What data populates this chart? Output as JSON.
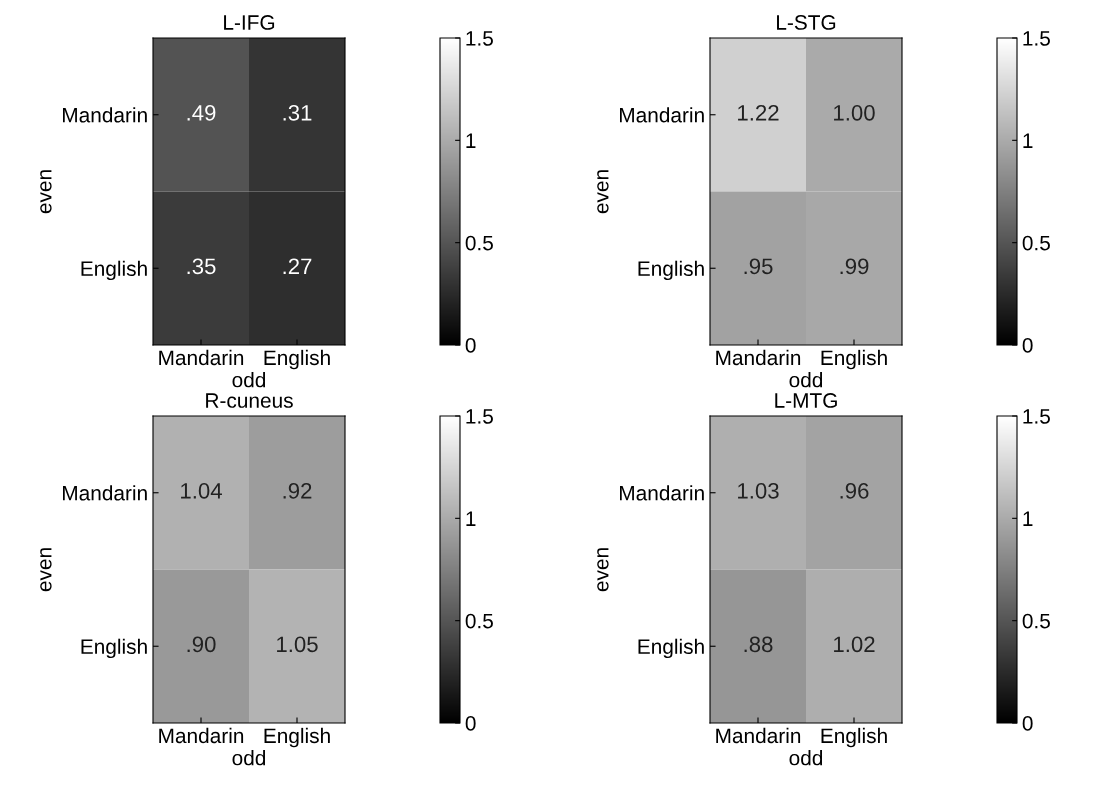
{
  "chart_data": [
    {
      "type": "heatmap",
      "title": "L-IFG",
      "xlabel": "odd",
      "ylabel": "even",
      "categories": [
        "Mandarin",
        "English"
      ],
      "y_categories": [
        "Mandarin",
        "English"
      ],
      "cells": [
        [
          0.49,
          0.31
        ],
        [
          0.35,
          0.27
        ]
      ],
      "cell_labels": [
        [
          ".49",
          ".31"
        ],
        [
          ".35",
          ".27"
        ]
      ],
      "clim": [
        0,
        1.5
      ],
      "cticks": [
        0,
        0.5,
        1,
        1.5
      ]
    },
    {
      "type": "heatmap",
      "title": "L-STG",
      "xlabel": "odd",
      "ylabel": "even",
      "categories": [
        "Mandarin",
        "English"
      ],
      "y_categories": [
        "Mandarin",
        "English"
      ],
      "cells": [
        [
          1.22,
          1.0
        ],
        [
          0.95,
          0.99
        ]
      ],
      "cell_labels": [
        [
          "1.22",
          "1.00"
        ],
        [
          ".95",
          ".99"
        ]
      ],
      "clim": [
        0,
        1.5
      ],
      "cticks": [
        0,
        0.5,
        1,
        1.5
      ]
    },
    {
      "type": "heatmap",
      "title": "R-cuneus",
      "xlabel": "odd",
      "ylabel": "even",
      "categories": [
        "Mandarin",
        "English"
      ],
      "y_categories": [
        "Mandarin",
        "English"
      ],
      "cells": [
        [
          1.04,
          0.92
        ],
        [
          0.9,
          1.05
        ]
      ],
      "cell_labels": [
        [
          "1.04",
          ".92"
        ],
        [
          ".90",
          "1.05"
        ]
      ],
      "clim": [
        0,
        1.5
      ],
      "cticks": [
        0,
        0.5,
        1,
        1.5
      ]
    },
    {
      "type": "heatmap",
      "title": "L-MTG",
      "xlabel": "odd",
      "ylabel": "even",
      "categories": [
        "Mandarin",
        "English"
      ],
      "y_categories": [
        "Mandarin",
        "English"
      ],
      "cells": [
        [
          1.03,
          0.96
        ],
        [
          0.88,
          1.02
        ]
      ],
      "cell_labels": [
        [
          "1.03",
          ".96"
        ],
        [
          ".88",
          "1.02"
        ]
      ],
      "clim": [
        0,
        1.5
      ],
      "cticks": [
        0,
        0.5,
        1,
        1.5
      ]
    }
  ]
}
